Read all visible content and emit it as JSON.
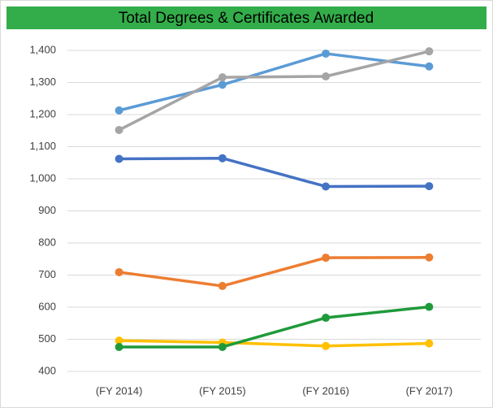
{
  "chart_data": {
    "type": "line",
    "title": "Total Degrees & Certificates Awarded",
    "categories": [
      "(FY 2014)",
      "(FY 2015)",
      "(FY 2016)",
      "(FY 2017)"
    ],
    "series": [
      {
        "color": "#5b9bd5",
        "values": [
          1213,
          1293,
          1390,
          1350
        ]
      },
      {
        "color": "#a5a5a5",
        "values": [
          1152,
          1316,
          1319,
          1397
        ]
      },
      {
        "color": "#4472c4",
        "values": [
          1062,
          1064,
          976,
          977
        ]
      },
      {
        "color": "#ed7d31",
        "values": [
          709,
          666,
          754,
          755
        ]
      },
      {
        "color": "#ffc000",
        "values": [
          496,
          490,
          479,
          487
        ]
      },
      {
        "color": "#1f9a3a",
        "values": [
          476,
          476,
          567,
          601
        ]
      }
    ],
    "ylim": [
      400,
      1400
    ],
    "yticks": [
      400,
      500,
      600,
      700,
      800,
      900,
      {
        "value": 1000,
        "label": "1,000"
      },
      {
        "value": 1100,
        "label": "1,100"
      },
      {
        "value": 1200,
        "label": "1,200"
      },
      {
        "value": 1300,
        "label": "1,300"
      },
      {
        "value": 1400,
        "label": "1,400"
      }
    ],
    "grid": true
  }
}
